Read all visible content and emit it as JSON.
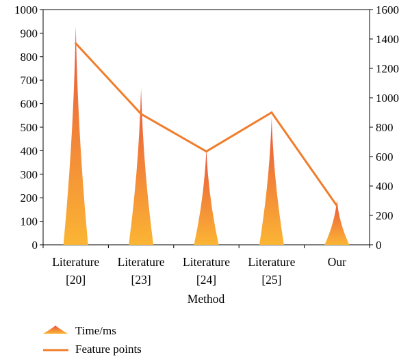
{
  "chart_data": {
    "type": "bar",
    "bar_shape": "cone",
    "xlabel": "Method",
    "categories": [
      [
        "Literature",
        "[20]"
      ],
      [
        "Literature",
        "[23]"
      ],
      [
        "Literature",
        "[24]"
      ],
      [
        "Literature",
        "[25]"
      ],
      [
        "Our"
      ]
    ],
    "series": [
      {
        "name": "Time/ms",
        "type": "bar",
        "axis": "left",
        "values": [
          930,
          665,
          405,
          540,
          190
        ],
        "color_top": "#e9533c",
        "color_bottom": "#fbb534"
      },
      {
        "name": "Feature points",
        "type": "line",
        "axis": "right",
        "values": [
          1370,
          890,
          635,
          900,
          265
        ],
        "color": "#f07d2c"
      }
    ],
    "y_left": {
      "lim": [
        0,
        1000
      ],
      "ticks": [
        0,
        100,
        200,
        300,
        400,
        500,
        600,
        700,
        800,
        900,
        1000
      ]
    },
    "y_right": {
      "lim": [
        0,
        1600
      ],
      "ticks": [
        0,
        200,
        400,
        600,
        800,
        1000,
        1200,
        1400,
        1600
      ]
    },
    "grid": false,
    "legend_position": "bottom-left"
  }
}
